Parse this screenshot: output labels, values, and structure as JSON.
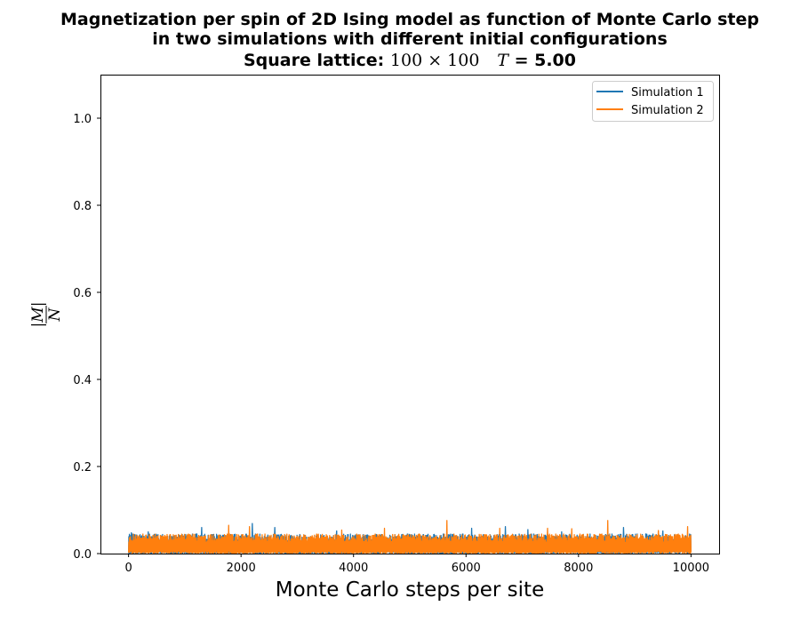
{
  "chart_data": {
    "type": "line",
    "title": {
      "line1": "Magnetization per spin of 2D Ising model as function of Monte Carlo step",
      "line2": "in two simulations with different initial configurations",
      "line3_prefix": "Square lattice: ",
      "line3_lattice": "100 × 100",
      "line3_T_symbol": "T",
      "line3_T_value": " = 5.00"
    },
    "xlabel": "Monte Carlo steps per site",
    "ylabel": {
      "numerator": "|M|",
      "denominator": "N"
    },
    "xlim": [
      -500,
      10500
    ],
    "ylim": [
      0,
      1.1
    ],
    "xticks": [
      0,
      2000,
      4000,
      6000,
      8000,
      10000
    ],
    "xtick_labels": [
      "0",
      "2000",
      "4000",
      "6000",
      "8000",
      "10000"
    ],
    "yticks": [
      0.0,
      0.2,
      0.4,
      0.6,
      0.8,
      1.0
    ],
    "ytick_labels": [
      "0.0",
      "0.2",
      "0.4",
      "0.6",
      "0.8",
      "1.0"
    ],
    "grid": false,
    "legend_position": "top-right",
    "series": [
      {
        "name": "Simulation 1",
        "color": "#1f77b4",
        "x_range": [
          0,
          10000
        ],
        "baseline_y": 0.0,
        "typical_max": 0.045,
        "peaks": [
          {
            "x": 50,
            "y": 0.048
          },
          {
            "x": 350,
            "y": 0.05
          },
          {
            "x": 1300,
            "y": 0.06
          },
          {
            "x": 2200,
            "y": 0.069
          },
          {
            "x": 2600,
            "y": 0.06
          },
          {
            "x": 3700,
            "y": 0.052
          },
          {
            "x": 5600,
            "y": 0.045
          },
          {
            "x": 6100,
            "y": 0.058
          },
          {
            "x": 6700,
            "y": 0.062
          },
          {
            "x": 7100,
            "y": 0.055
          },
          {
            "x": 7700,
            "y": 0.05
          },
          {
            "x": 8800,
            "y": 0.06
          },
          {
            "x": 9500,
            "y": 0.052
          }
        ]
      },
      {
        "name": "Simulation 2",
        "color": "#ff7f0e",
        "x_range": [
          0,
          10000
        ],
        "baseline_y": 0.0,
        "typical_max": 0.045,
        "peaks": [
          {
            "x": 1780,
            "y": 0.065
          },
          {
            "x": 2150,
            "y": 0.062
          },
          {
            "x": 3790,
            "y": 0.054
          },
          {
            "x": 4550,
            "y": 0.058
          },
          {
            "x": 5660,
            "y": 0.076
          },
          {
            "x": 6600,
            "y": 0.058
          },
          {
            "x": 7450,
            "y": 0.058
          },
          {
            "x": 7880,
            "y": 0.057
          },
          {
            "x": 8520,
            "y": 0.076
          },
          {
            "x": 9420,
            "y": 0.053
          },
          {
            "x": 9940,
            "y": 0.062
          }
        ]
      }
    ]
  }
}
